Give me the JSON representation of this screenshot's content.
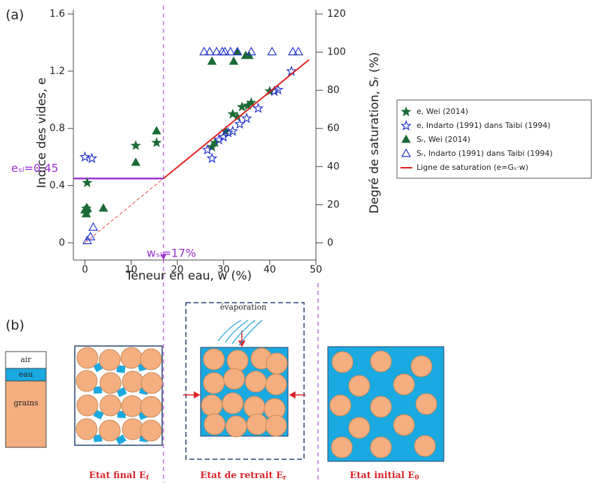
{
  "chart_data": {
    "type": "scatter",
    "panel_label": "(a)",
    "x_label": "Teneur en eau, w (%)",
    "y_label": "Indice des vides, e",
    "y2_label": "Degré de saturation, Sᵣ (%)",
    "xlim": [
      -2.5,
      50
    ],
    "xticks": [
      0,
      10,
      20,
      30,
      40,
      50
    ],
    "ylim": [
      -0.12,
      1.6
    ],
    "yticks": [
      0,
      0.4,
      0.8,
      1.2,
      1.6
    ],
    "y2lim": [
      -9,
      120
    ],
    "y2ticks": [
      0,
      20,
      40,
      60,
      80,
      100,
      120
    ],
    "series": [
      {
        "name": "e, Wei (2014)",
        "color": "#1c6b36",
        "marker": "star",
        "filled": true,
        "x": [
          0.3,
          0.4,
          0.5,
          11,
          15.5,
          27.5,
          28.2,
          30.5,
          32,
          33,
          34,
          35.3,
          36,
          40
        ],
        "values": [
          0.24,
          0.21,
          0.42,
          0.68,
          0.7,
          0.67,
          0.7,
          0.78,
          0.9,
          0.88,
          0.95,
          0.96,
          0.98,
          1.06
        ]
      },
      {
        "name": "e, Indarto (1991) dans Taibi (1994)",
        "color": "#2233cc",
        "marker": "star",
        "filled": false,
        "x": [
          0,
          1.5,
          26.5,
          27.5,
          29,
          30,
          31,
          32,
          33.5,
          35,
          37.5,
          41,
          41.8,
          44.7
        ],
        "values": [
          0.6,
          0.59,
          0.65,
          0.59,
          0.72,
          0.74,
          0.77,
          0.78,
          0.83,
          0.87,
          0.94,
          1.06,
          1.07,
          1.2
        ]
      },
      {
        "name": "Sᵣ, Wei (2014)",
        "color": "#1c6b36",
        "marker": "triangle",
        "filled": true,
        "axis": "y2",
        "x": [
          0,
          0.3,
          0.5,
          4,
          11,
          15.5,
          27.5,
          32.2,
          33,
          34.8,
          35.5
        ],
        "values": [
          17,
          15,
          18,
          18,
          42,
          58.5,
          95,
          95,
          100,
          98,
          98
        ]
      },
      {
        "name": "Sᵣ, Indarto (1991) dans Taibi (1994)",
        "color": "#2233cc",
        "marker": "triangle",
        "filled": false,
        "axis": "y2",
        "x": [
          0.5,
          1.2,
          1.8,
          25.8,
          27,
          28.5,
          29.7,
          30.3,
          31.5,
          33,
          36,
          40.5,
          45,
          46.2
        ],
        "values": [
          1,
          3,
          8,
          100,
          100,
          100,
          100,
          100,
          100,
          100,
          100,
          100,
          100,
          100
        ]
      },
      {
        "name": "Ligne de saturation (e=Gₛ·w)",
        "color": "#e0201b",
        "type": "line",
        "x": [
          0,
          17,
          48.5
        ],
        "values": [
          0,
          0.45,
          1.28
        ]
      }
    ],
    "shrinkage_limit": {
      "w": 17,
      "e": 0.45,
      "e_label": "eₛₗ=0.45",
      "w_label": "wₛₗ=17%",
      "color": "#9b30d0"
    }
  },
  "diagram": {
    "panel_label": "(b)",
    "legend": [
      "air",
      "eau",
      "grains"
    ],
    "evaporation": "évaporation",
    "states": [
      {
        "name": "Etat final E",
        "sub": "f"
      },
      {
        "name": "Etat de retrait E",
        "sub": "r"
      },
      {
        "name": "Etat initial E",
        "sub": "0"
      }
    ]
  }
}
